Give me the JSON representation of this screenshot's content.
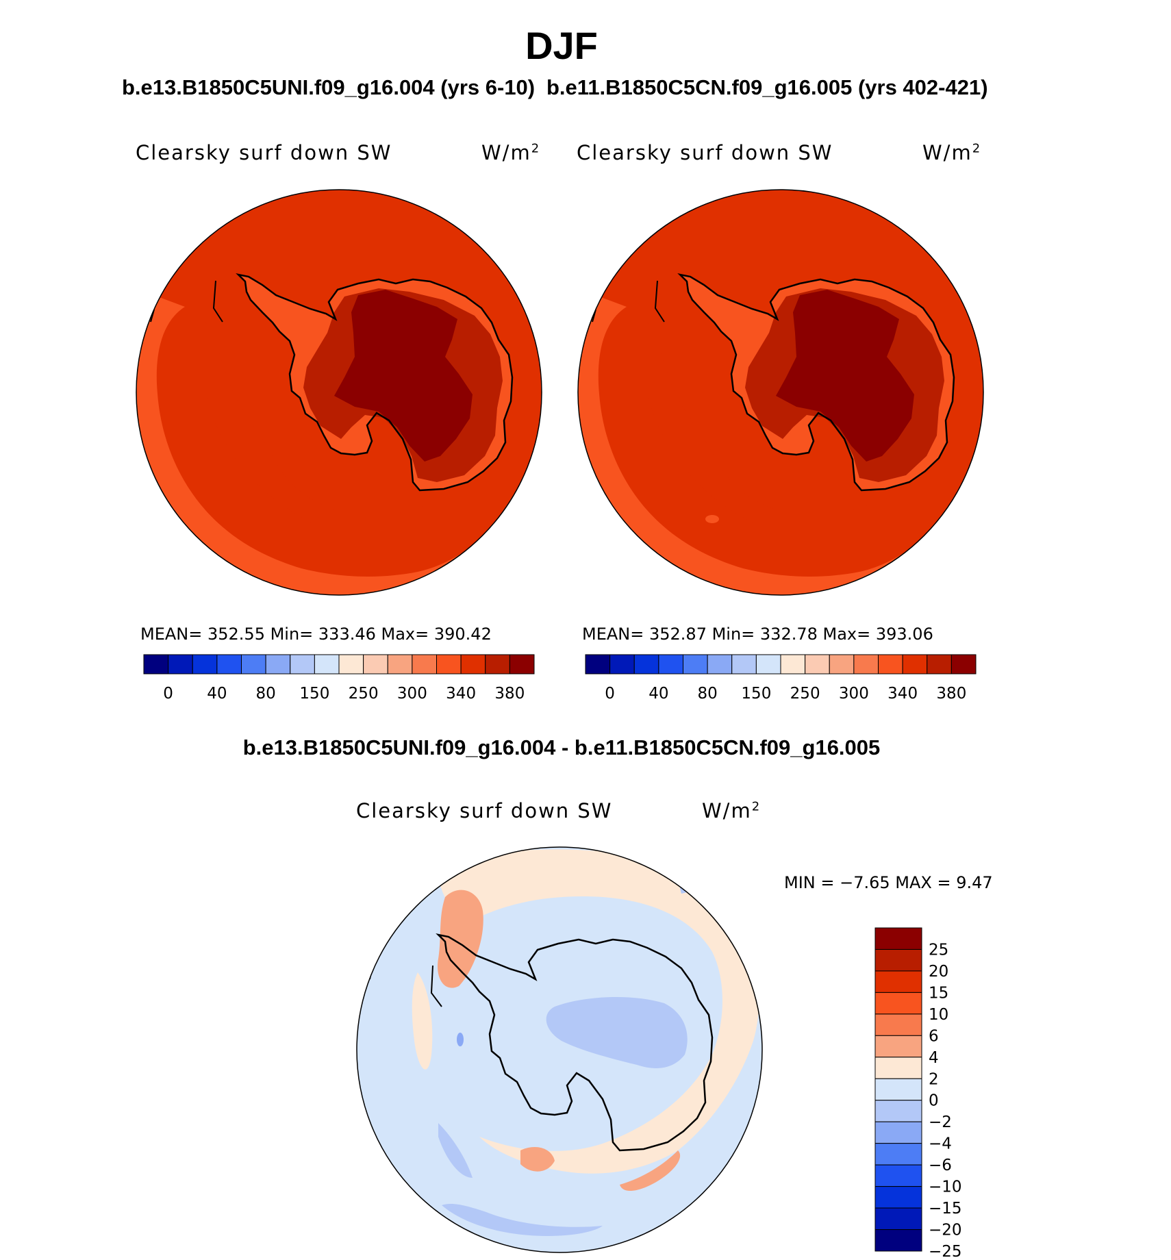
{
  "title": "DJF",
  "left_panel": {
    "case": "b.e13.B1850C5UNI.f09_g16.004 (yrs 6-10)",
    "variable": "Clearsky surf down SW",
    "units": "W/m",
    "units_exp": "2",
    "stats": "MEAN= 352.55   Min= 333.46   Max= 390.42"
  },
  "right_panel": {
    "case": "b.e11.B1850C5CN.f09_g16.005 (yrs 402-421)",
    "variable": "Clearsky surf down SW",
    "units": "W/m",
    "units_exp": "2",
    "stats": "MEAN= 352.87   Min= 332.78   Max= 393.06"
  },
  "diff_panel": {
    "title": "b.e13.B1850C5UNI.f09_g16.004 - b.e11.B1850C5CN.f09_g16.005",
    "variable": "Clearsky surf down SW",
    "units": "W/m",
    "units_exp": "2",
    "minmax": "MIN =   −7.65 MAX =    9.47"
  },
  "colorbar_fields": {
    "colors": [
      "#00007f",
      "#0019b8",
      "#0533db",
      "#1f52f0",
      "#4d7df5",
      "#8aa9f5",
      "#b3c8f7",
      "#d4e5fa",
      "#fde8d5",
      "#fbcbb3",
      "#f8a480",
      "#f87a4d",
      "#f8541f",
      "#e03000",
      "#b81e00",
      "#8b0000"
    ],
    "labels": [
      "0",
      "40",
      "80",
      "150",
      "250",
      "300",
      "340",
      "380"
    ]
  },
  "colorbar_diff": {
    "colors": [
      "#8b0000",
      "#b81e00",
      "#e03000",
      "#f8541f",
      "#f87a4d",
      "#f8a480",
      "#fde8d5",
      "#d4e5fa",
      "#b3c8f7",
      "#8aa9f5",
      "#4d7df5",
      "#1f52f0",
      "#0533db",
      "#0019b8",
      "#00007f"
    ],
    "labels": [
      "25",
      "20",
      "15",
      "10",
      "6",
      "4",
      "2",
      "0",
      "−2",
      "−4",
      "−6",
      "−10",
      "−15",
      "−20",
      "−25"
    ]
  },
  "map_colors": {
    "ocean_field": "#e03000",
    "band_field": "#f8541f",
    "coast_field": "#b81e00",
    "plateau_field": "#8b0000",
    "diff_neg": "#d4e5fa",
    "diff_pos": "#fde8d5",
    "diff_pos2": "#f8a480",
    "diff_neg2": "#b3c8f7",
    "diff_neg3": "#8aa9f5"
  }
}
